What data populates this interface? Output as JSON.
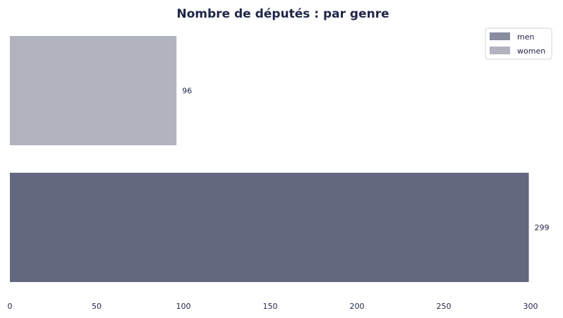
{
  "chart_data": {
    "type": "bar",
    "orientation": "horizontal",
    "title": "Nombre de députés : par genre",
    "categories": [
      "women",
      "men"
    ],
    "values": [
      96,
      299
    ],
    "colors": {
      "women": "#b1b3bf",
      "men": "#636880"
    },
    "xlabel": "",
    "ylabel": "",
    "xlim": [
      0,
      300
    ],
    "xticks": [
      0,
      50,
      100,
      150,
      200,
      250,
      300
    ],
    "grid": false,
    "legend": {
      "position": "top-right",
      "entries": [
        {
          "label": "men",
          "color": "#898b9e"
        },
        {
          "label": "women",
          "color": "#b1b3bf"
        }
      ]
    }
  }
}
